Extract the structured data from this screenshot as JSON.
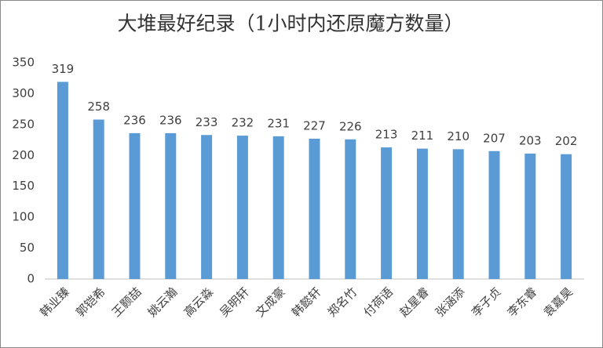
{
  "chart_data": {
    "type": "bar",
    "title": "大堆最好纪录（1小时内还原魔方数量）",
    "categories": [
      "韩业臻",
      "郭铠希",
      "王颢喆",
      "姚云瀚",
      "高云淼",
      "吴明轩",
      "文成豪",
      "韩懿轩",
      "郑名竹",
      "付荷语",
      "赵星睿",
      "张涵添",
      "李子贞",
      "李东睿",
      "袁嘉昊"
    ],
    "values": [
      319,
      258,
      236,
      236,
      233,
      232,
      231,
      227,
      226,
      213,
      211,
      210,
      207,
      203,
      202
    ],
    "color": "#5b9bd5",
    "ylim": [
      0,
      350
    ],
    "yticks": [
      0,
      50,
      100,
      150,
      200,
      250,
      300,
      350
    ],
    "grid": false
  }
}
